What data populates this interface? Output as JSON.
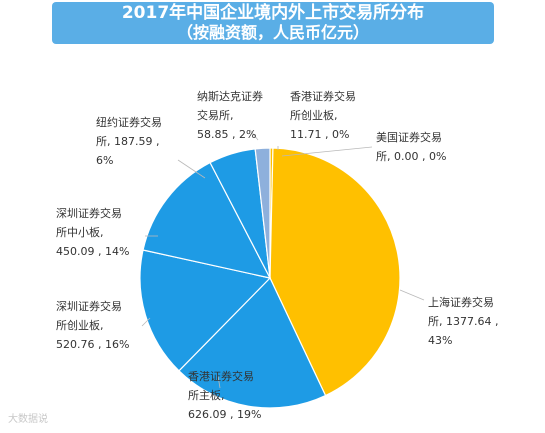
{
  "title_line1": "2017年中国企业境内外上市交易所分布",
  "title_line2": "（按融资额，人民币亿元）",
  "watermark": "大数据说",
  "chart_data": {
    "type": "pie",
    "title": "2017年中国企业境内外上市交易所分布（按融资额，人民币亿元）",
    "start_category": "香港证券交易所创业板",
    "direction": "clockwise",
    "slices": [
      {
        "name": "香港证券交易所创业板",
        "value": 11.71,
        "percent": "0%",
        "label": [
          "香港证券交易",
          "所创业板,",
          "11.71 , 0%"
        ],
        "color": "#ffc000"
      },
      {
        "name": "美国证券交易所",
        "value": 0.0,
        "percent": "0%",
        "label": [
          "美国证券交易",
          "所, 0.00 , 0%"
        ],
        "color": "#ffc000"
      },
      {
        "name": "上海证券交易所",
        "value": 1377.64,
        "percent": "43%",
        "label": [
          "上海证券交易",
          "所, 1377.64 ,",
          "43%"
        ],
        "color": "#ffc000"
      },
      {
        "name": "香港证券交易所主板",
        "value": 626.09,
        "percent": "19%",
        "label": [
          "香港证券交易",
          "所主板,",
          "626.09 , 19%"
        ],
        "color": "#1e9be5"
      },
      {
        "name": "深圳证券交易所创业板",
        "value": 520.76,
        "percent": "16%",
        "label": [
          "深圳证券交易",
          "所创业板,",
          "520.76 , 16%"
        ],
        "color": "#1e9be5"
      },
      {
        "name": "深圳证券交易所中小板",
        "value": 450.09,
        "percent": "14%",
        "label": [
          "深圳证券交易",
          "所中小板,",
          "450.09 , 14%"
        ],
        "color": "#1e9be5"
      },
      {
        "name": "纽约证券交易所",
        "value": 187.59,
        "percent": "6%",
        "label": [
          "纽约证券交易",
          "所, 187.59 ,",
          "6%"
        ],
        "color": "#1e9be5"
      },
      {
        "name": "纳斯达克证券交易所",
        "value": 58.85,
        "percent": "2%",
        "label": [
          "纳斯达克证券",
          "交易所,",
          "58.85 , 2%"
        ],
        "color": "#8eb0dc"
      }
    ],
    "slice_border_color": "#ffffff",
    "legend": "none"
  }
}
